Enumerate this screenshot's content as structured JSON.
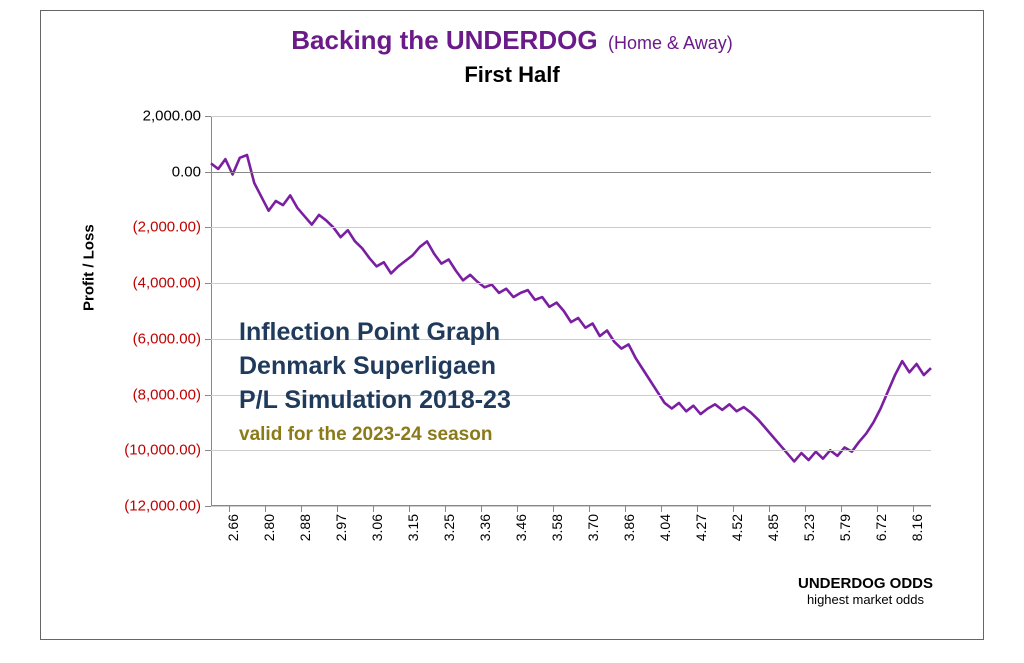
{
  "title": {
    "main": "Backing the UNDERDOG",
    "paren": "(Home & Away)",
    "second": "First Half"
  },
  "y_axis": {
    "label": "Profit / Loss",
    "min": -12000,
    "max": 2000,
    "ticks": [
      {
        "v": 2000,
        "label": "2,000.00",
        "neg": false
      },
      {
        "v": 0,
        "label": "0.00",
        "neg": false
      },
      {
        "v": -2000,
        "label": "(2,000.00)",
        "neg": true
      },
      {
        "v": -4000,
        "label": "(4,000.00)",
        "neg": true
      },
      {
        "v": -6000,
        "label": "(6,000.00)",
        "neg": true
      },
      {
        "v": -8000,
        "label": "(8,000.00)",
        "neg": true
      },
      {
        "v": -10000,
        "label": "(10,000.00)",
        "neg": true
      },
      {
        "v": -12000,
        "label": "(12,000.00)",
        "neg": true
      }
    ],
    "grid_color": "#cccccc",
    "zero_color": "#888888",
    "tick_fontsize": 15,
    "neg_color": "#c00000",
    "pos_color": "#000000"
  },
  "x_axis": {
    "label": "UNDERDOG ODDS",
    "sublabel": "highest market odds",
    "ticks": [
      "2.66",
      "2.80",
      "2.88",
      "2.97",
      "3.06",
      "3.15",
      "3.25",
      "3.36",
      "3.46",
      "3.58",
      "3.70",
      "3.86",
      "4.04",
      "4.27",
      "4.52",
      "4.85",
      "5.23",
      "5.79",
      "6.72",
      "8.16"
    ],
    "tick_fontsize": 14
  },
  "overlay": {
    "line1": "Inflection Point Graph",
    "line2": "Denmark Superligaen",
    "line3": "P/L Simulation 2018-23",
    "valid": "valid for the 2023-24 season",
    "text_color": "#1f3a5a",
    "valid_color": "#8a7a1a"
  },
  "chart": {
    "type": "line",
    "n_points": 21,
    "line_color": "#7b1fa2",
    "line_width": 2.6,
    "background_color": "#ffffff",
    "series": [
      300,
      100,
      450,
      -100,
      500,
      600,
      -400,
      -900,
      -1400,
      -1050,
      -1200,
      -850,
      -1300,
      -1600,
      -1900,
      -1550,
      -1750,
      -2000,
      -2350,
      -2100,
      -2500,
      -2750,
      -3100,
      -3400,
      -3250,
      -3650,
      -3400,
      -3200,
      -3000,
      -2700,
      -2500,
      -2950,
      -3300,
      -3150,
      -3550,
      -3900,
      -3700,
      -3950,
      -4150,
      -4050,
      -4350,
      -4200,
      -4500,
      -4350,
      -4250,
      -4600,
      -4500,
      -4850,
      -4700,
      -5000,
      -5400,
      -5250,
      -5600,
      -5450,
      -5900,
      -5700,
      -6100,
      -6350,
      -6200,
      -6700,
      -7100,
      -7500,
      -7900,
      -8300,
      -8500,
      -8300,
      -8600,
      -8400,
      -8700,
      -8500,
      -8350,
      -8550,
      -8350,
      -8600,
      -8450,
      -8650,
      -8900,
      -9200,
      -9500,
      -9800,
      -10100,
      -10400,
      -10100,
      -10350,
      -10050,
      -10300,
      -10000,
      -10200,
      -9900,
      -10050,
      -9700,
      -9400,
      -9000,
      -8500,
      -7900,
      -7300,
      -6800,
      -7200,
      -6900,
      -7300,
      -7050
    ]
  }
}
